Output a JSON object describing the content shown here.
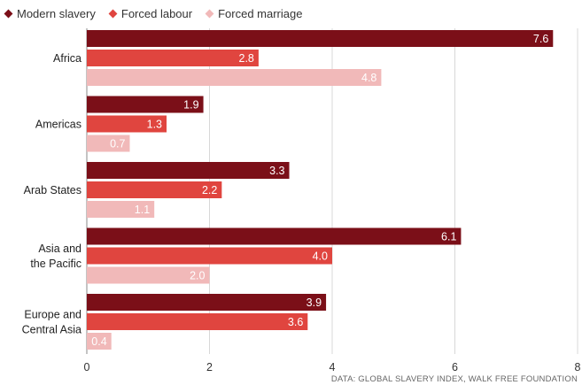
{
  "colors": {
    "modern_slavery": "#7b0f18",
    "forced_labour": "#e0453f",
    "forced_marriage": "#f1b9b9",
    "grid": "#d8d8d8",
    "axis": "#888888"
  },
  "source_note": "DATA: GLOBAL SLAVERY INDEX, WALK FREE FOUNDATION",
  "chart_data": {
    "type": "bar",
    "orientation": "horizontal",
    "categories": [
      "Africa",
      "Americas",
      "Arab States",
      "Asia and the Pacific",
      "Europe and Central Asia"
    ],
    "category_lines": [
      [
        "Africa"
      ],
      [
        "Americas"
      ],
      [
        "Arab States"
      ],
      [
        "Asia and",
        "the Pacific"
      ],
      [
        "Europe and",
        "Central Asia"
      ]
    ],
    "series": [
      {
        "name": "Modern slavery",
        "values": [
          7.6,
          1.9,
          3.3,
          6.1,
          3.9
        ]
      },
      {
        "name": "Forced labour",
        "values": [
          2.8,
          1.3,
          2.2,
          4.0,
          3.6
        ]
      },
      {
        "name": "Forced marriage",
        "values": [
          4.8,
          0.7,
          1.1,
          2.0,
          0.4
        ]
      }
    ],
    "value_labels": [
      [
        "7.6",
        "1.9",
        "3.3",
        "6.1",
        "3.9"
      ],
      [
        "2.8",
        "1.3",
        "2.2",
        "4.0",
        "3.6"
      ],
      [
        "4.8",
        "0.7",
        "1.1",
        "2.0",
        "0.4"
      ]
    ],
    "xlim": [
      0,
      8
    ],
    "xticks": [
      0,
      2,
      4,
      6,
      8
    ],
    "grid": true,
    "legend_position": "top-left"
  }
}
